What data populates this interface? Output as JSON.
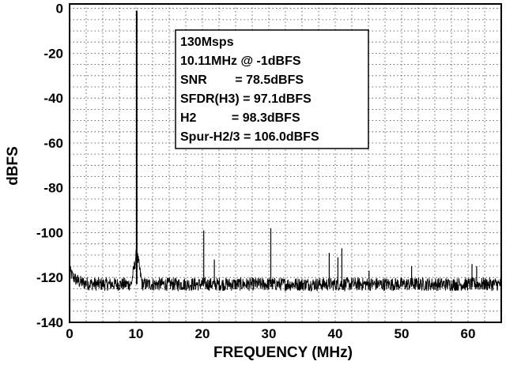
{
  "chart_data": {
    "type": "line",
    "xlabel": "FREQUENCY (MHz)",
    "ylabel": "dBFS",
    "xlim": [
      0,
      65
    ],
    "ylim": [
      -140,
      2
    ],
    "x_ticks": [
      0,
      10,
      20,
      30,
      40,
      50,
      60
    ],
    "y_ticks": [
      0,
      -20,
      -40,
      -60,
      -80,
      -100,
      -120,
      -140
    ],
    "x_tick_labels": [
      "0",
      "10",
      "20",
      "30",
      "40",
      "50",
      "60"
    ],
    "y_tick_labels": [
      "0",
      "-20",
      "-40",
      "-60",
      "-80",
      "-100",
      "-120",
      "-140"
    ],
    "grid": true,
    "grid_style": "dotted",
    "x_minor_step": 2.5,
    "y_minor_step": 5,
    "noise_floor_dbfs": -123,
    "noise_rise_near_dc_dbfs": -117,
    "fundamental": {
      "x": 10.11,
      "y": -1
    },
    "fundamental_skirt_peak_dbfs": -109,
    "spurs": [
      {
        "x": 20.2,
        "y": -99
      },
      {
        "x": 21.8,
        "y": -112
      },
      {
        "x": 30.3,
        "y": -98
      },
      {
        "x": 39.1,
        "y": -109
      },
      {
        "x": 40.4,
        "y": -111
      },
      {
        "x": 41.0,
        "y": -107
      },
      {
        "x": 45.1,
        "y": -117
      },
      {
        "x": 51.5,
        "y": -115
      },
      {
        "x": 60.6,
        "y": -114
      },
      {
        "x": 61.3,
        "y": -115
      }
    ],
    "annotation": [
      "130Msps",
      "10.11MHz @ -1dBFS",
      "SNR        = 78.5dBFS",
      "SFDR(H3) = 97.1dBFS",
      "H2          = 98.3dBFS",
      "Spur-H2/3 = 106.0dBFS"
    ],
    "line_color": "#000000",
    "background": "#ffffff"
  }
}
